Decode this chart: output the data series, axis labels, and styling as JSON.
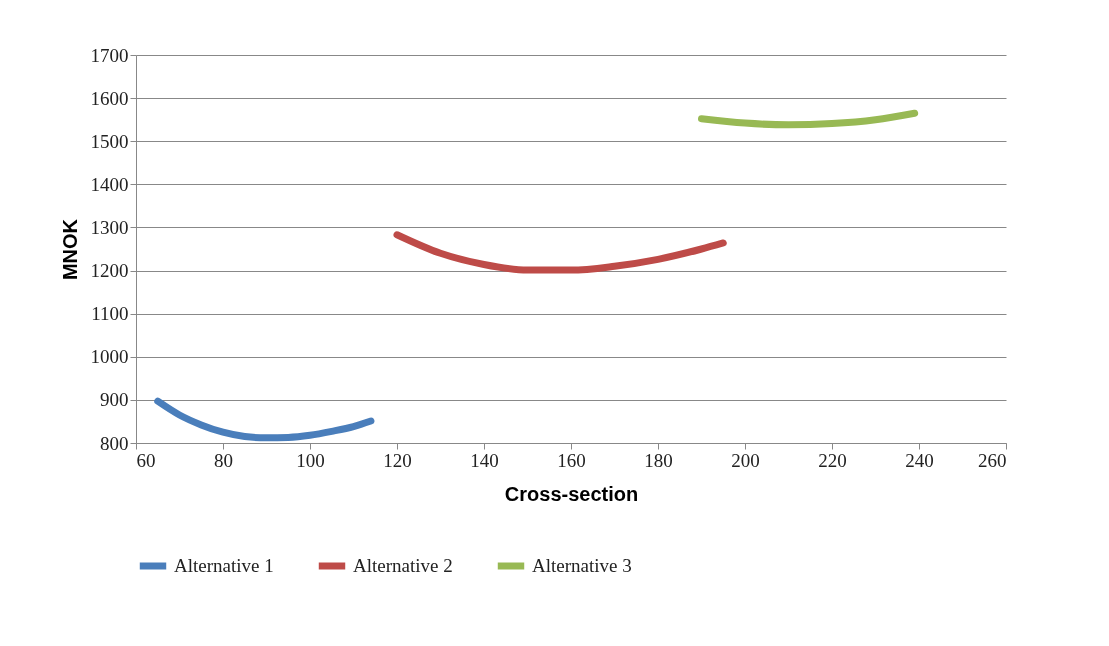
{
  "chart_data": {
    "type": "line",
    "xlabel": "Cross-section",
    "ylabel": "MNOK",
    "xlim": [
      60,
      260
    ],
    "xticks": [
      60,
      80,
      100,
      120,
      140,
      160,
      180,
      200,
      220,
      240,
      260
    ],
    "ylim": [
      800,
      1700
    ],
    "yticks": [
      800,
      900,
      1000,
      1100,
      1200,
      1300,
      1400,
      1500,
      1600,
      1700
    ],
    "grid": "y",
    "legend": "bottom",
    "marker": "none",
    "line_style": "solid",
    "series": [
      {
        "name": "Alternative 1",
        "color": "#4a7ebb",
        "x": [
          65,
          70,
          75,
          80,
          85,
          90,
          95,
          100,
          105,
          110,
          114
        ],
        "values": [
          897,
          865,
          842,
          825,
          815,
          812,
          813,
          818,
          827,
          838,
          851
        ]
      },
      {
        "name": "Alternative 2",
        "color": "#be4b48",
        "x": [
          120,
          130,
          140,
          150,
          160,
          170,
          180,
          190,
          195
        ],
        "values": [
          1283,
          1240,
          1214,
          1201,
          1201,
          1210,
          1226,
          1250,
          1264
        ]
      },
      {
        "name": "Alternative 3",
        "color": "#98b954",
        "x": [
          190,
          200,
          210,
          220,
          230,
          239
        ],
        "values": [
          1552,
          1542,
          1538,
          1541,
          1550,
          1565
        ]
      }
    ]
  }
}
